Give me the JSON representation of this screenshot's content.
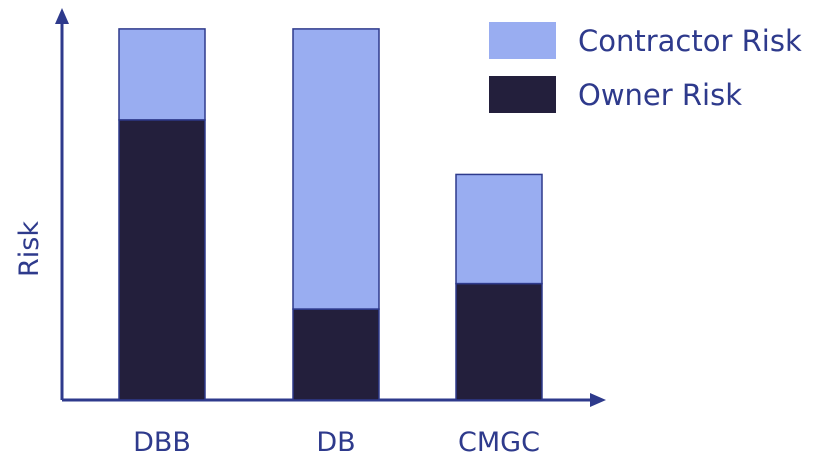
{
  "chart_data": {
    "type": "bar",
    "stacked": true,
    "categories": [
      "DBB",
      "DB",
      "CMGC"
    ],
    "series": [
      {
        "name": "Owner Risk",
        "color": "#231f3c",
        "values": [
          77,
          25,
          32
        ]
      },
      {
        "name": "Contractor Risk",
        "color": "#99adf1",
        "values": [
          25,
          77,
          30
        ]
      }
    ],
    "ylabel": "Risk",
    "xlabel": "",
    "ylim": [
      0,
      105
    ],
    "grid": false,
    "legend_position": "top-right",
    "axis_color": "#2e3a8c"
  }
}
